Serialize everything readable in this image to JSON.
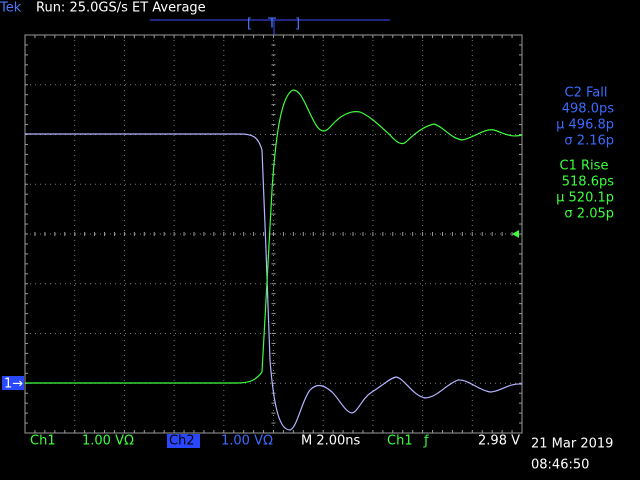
{
  "header": {
    "brand": "Tek",
    "status": "Run: 25.0GS/s ET Average"
  },
  "trigger": {
    "left": "[",
    "mark": "T",
    "right": "]"
  },
  "measurements": [
    {
      "title": "C2 Fall",
      "value": "498.0ps",
      "mean": "μ 496.8p",
      "sigma": "σ 2.16p"
    },
    {
      "title": "C1 Rise",
      "value": "518.6ps",
      "mean": "μ 520.1p",
      "sigma": "σ 2.05p"
    }
  ],
  "marker": "1→",
  "footer": {
    "ch1": "Ch1",
    "ch1_scale": "1.00 VΩ",
    "ch2": "Ch2",
    "ch2_scale": "1.00 VΩ",
    "timebase": "M 2.00ns",
    "trig_source": "Ch1",
    "trig_slope": "ƒ",
    "trig_level": "2.98 V",
    "date": "21 Mar 2019",
    "time": "08:46:50"
  }
}
